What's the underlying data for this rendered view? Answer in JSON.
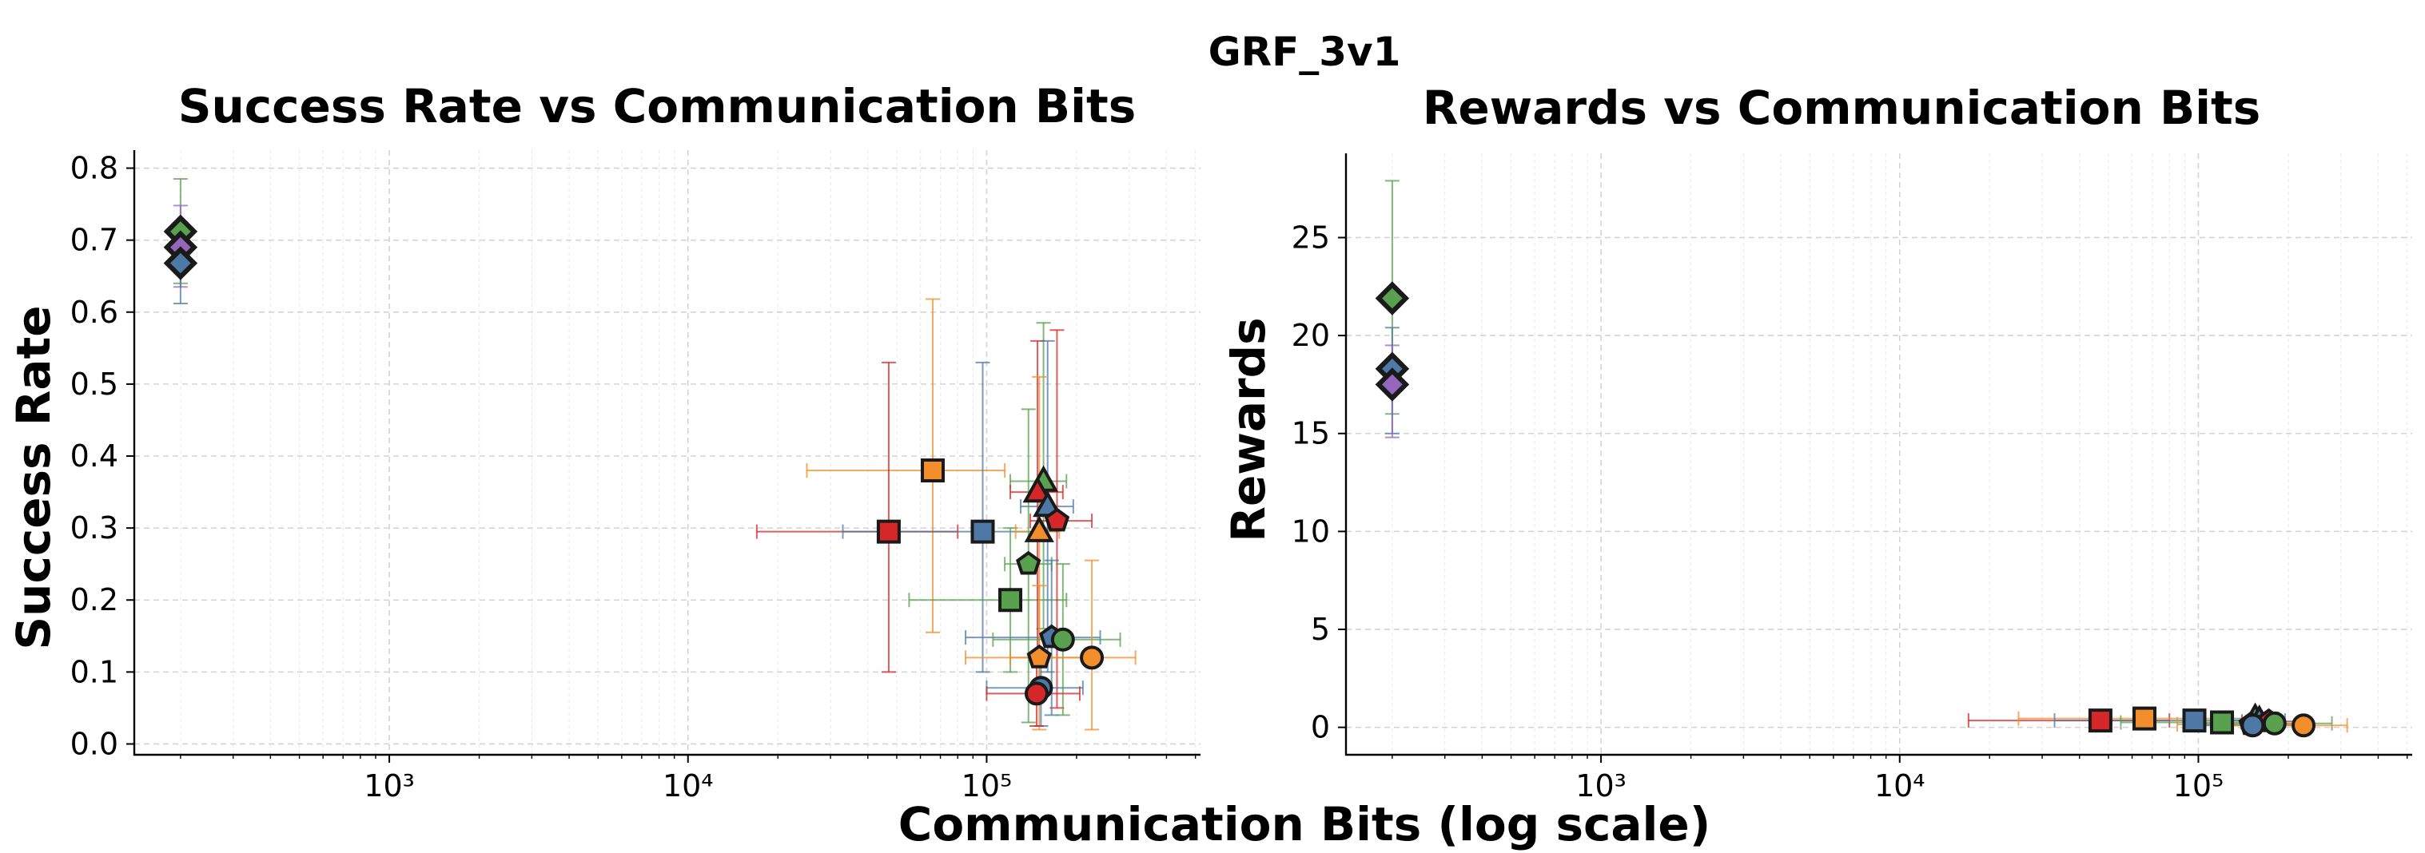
{
  "figure": {
    "suptitle": "GRF_3v1",
    "shared_xlabel": "Communication Bits (log scale)"
  },
  "chart_data": [
    {
      "type": "scatter",
      "title": "Success Rate vs Communication Bits",
      "xlabel": "Communication Bits (log scale)",
      "ylabel": "Success Rate",
      "xscale": "log",
      "xlim": [
        140,
        520000
      ],
      "ylim": [
        -0.015,
        0.825
      ],
      "xticks": [
        1000,
        10000,
        100000
      ],
      "xtick_labels": [
        "10³",
        "10⁴",
        "10⁵"
      ],
      "yticks": [
        0.0,
        0.1,
        0.2,
        0.3,
        0.4,
        0.5,
        0.6,
        0.7,
        0.8
      ],
      "ytick_labels": [
        "0.0",
        "0.1",
        "0.2",
        "0.3",
        "0.4",
        "0.5",
        "0.6",
        "0.7",
        "0.8"
      ],
      "grid": true,
      "points": [
        {
          "marker": "diamond",
          "color": "#59a14f",
          "x": 200,
          "y": 0.712,
          "yerr": [
            0.64,
            0.785
          ]
        },
        {
          "marker": "diamond",
          "color": "#9467bd",
          "x": 200,
          "y": 0.69,
          "yerr": [
            0.635,
            0.748
          ]
        },
        {
          "marker": "diamond",
          "color": "#4e79a7",
          "x": 200,
          "y": 0.668,
          "yerr": [
            0.612,
            0.725
          ]
        },
        {
          "marker": "square",
          "color": "#f28e2b",
          "x": 66000,
          "y": 0.38,
          "xerr": [
            25000,
            115000
          ],
          "yerr": [
            0.155,
            0.618
          ]
        },
        {
          "marker": "square",
          "color": "#d62728",
          "x": 47000,
          "y": 0.295,
          "xerr": [
            17000,
            80000
          ],
          "yerr": [
            0.1,
            0.53
          ]
        },
        {
          "marker": "square",
          "color": "#4e79a7",
          "x": 97000,
          "y": 0.295,
          "xerr": [
            33000,
            160000
          ],
          "yerr": [
            0.1,
            0.53
          ]
        },
        {
          "marker": "square",
          "color": "#59a14f",
          "x": 120000,
          "y": 0.2,
          "xerr": [
            55000,
            185000
          ],
          "yerr": [
            0.1,
            0.3
          ]
        },
        {
          "marker": "triangle",
          "color": "#59a14f",
          "x": 155000,
          "y": 0.365,
          "xerr": [
            120000,
            185000
          ],
          "yerr": [
            0.16,
            0.585
          ]
        },
        {
          "marker": "triangle",
          "color": "#d62728",
          "x": 148000,
          "y": 0.35,
          "xerr": [
            120000,
            180000
          ],
          "yerr": [
            0.12,
            0.56
          ]
        },
        {
          "marker": "triangle",
          "color": "#4e79a7",
          "x": 160000,
          "y": 0.33,
          "xerr": [
            130000,
            195000
          ],
          "yerr": [
            0.1,
            0.56
          ]
        },
        {
          "marker": "triangle",
          "color": "#f28e2b",
          "x": 150000,
          "y": 0.295,
          "xerr": [
            125000,
            175000
          ],
          "yerr": [
            0.08,
            0.51
          ]
        },
        {
          "marker": "pentagon",
          "color": "#d62728",
          "x": 172000,
          "y": 0.31,
          "xerr": [
            140000,
            225000
          ],
          "yerr": [
            0.05,
            0.575
          ]
        },
        {
          "marker": "pentagon",
          "color": "#59a14f",
          "x": 138000,
          "y": 0.25,
          "xerr": [
            115000,
            165000
          ],
          "yerr": [
            0.03,
            0.465
          ]
        },
        {
          "marker": "pentagon",
          "color": "#4e79a7",
          "x": 165000,
          "y": 0.148,
          "xerr": [
            85000,
            240000
          ],
          "yerr": [
            0.04,
            0.255
          ]
        },
        {
          "marker": "pentagon",
          "color": "#f28e2b",
          "x": 150000,
          "y": 0.12,
          "xerr": [
            85000,
            215000
          ],
          "yerr": [
            0.02,
            0.22
          ]
        },
        {
          "marker": "circle",
          "color": "#59a14f",
          "x": 180000,
          "y": 0.145,
          "xerr": [
            105000,
            280000
          ],
          "yerr": [
            0.04,
            0.25
          ]
        },
        {
          "marker": "circle",
          "color": "#f28e2b",
          "x": 225000,
          "y": 0.12,
          "xerr": [
            120000,
            315000
          ],
          "yerr": [
            0.02,
            0.255
          ]
        },
        {
          "marker": "circle",
          "color": "#4e79a7",
          "x": 152000,
          "y": 0.078,
          "xerr": [
            100000,
            210000
          ],
          "yerr": [
            0.025,
            0.13
          ]
        },
        {
          "marker": "circle",
          "color": "#d62728",
          "x": 147000,
          "y": 0.07,
          "xerr": [
            100000,
            205000
          ],
          "yerr": [
            0.025,
            0.115
          ]
        }
      ]
    },
    {
      "type": "scatter",
      "title": "Rewards vs Communication Bits",
      "xlabel": "Communication Bits (log scale)",
      "ylabel": "Rewards",
      "xscale": "log",
      "xlim": [
        140,
        520000
      ],
      "ylim": [
        -1.4,
        29.3
      ],
      "xticks": [
        1000,
        10000,
        100000
      ],
      "xtick_labels": [
        "10³",
        "10⁴",
        "10⁵"
      ],
      "yticks": [
        0,
        5,
        10,
        15,
        20,
        25
      ],
      "ytick_labels": [
        "0",
        "5",
        "10",
        "15",
        "20",
        "25"
      ],
      "grid": true,
      "points": [
        {
          "marker": "diamond",
          "color": "#59a14f",
          "x": 200,
          "y": 21.9,
          "yerr": [
            16.0,
            27.9
          ]
        },
        {
          "marker": "diamond",
          "color": "#4e79a7",
          "x": 200,
          "y": 18.3,
          "yerr": [
            15.0,
            20.4
          ]
        },
        {
          "marker": "diamond",
          "color": "#9467bd",
          "x": 200,
          "y": 17.5,
          "yerr": [
            14.8,
            19.5
          ]
        },
        {
          "marker": "square",
          "color": "#d62728",
          "x": 47000,
          "y": 0.35,
          "xerr": [
            17000,
            80000
          ]
        },
        {
          "marker": "square",
          "color": "#f28e2b",
          "x": 66000,
          "y": 0.45,
          "xerr": [
            25000,
            115000
          ]
        },
        {
          "marker": "square",
          "color": "#4e79a7",
          "x": 97000,
          "y": 0.35,
          "xerr": [
            33000,
            160000
          ]
        },
        {
          "marker": "square",
          "color": "#59a14f",
          "x": 120000,
          "y": 0.25,
          "xerr": [
            55000,
            185000
          ]
        },
        {
          "marker": "triangle",
          "color": "#59a14f",
          "x": 155000,
          "y": 0.45,
          "xerr": [
            120000,
            185000
          ]
        },
        {
          "marker": "triangle",
          "color": "#4e79a7",
          "x": 160000,
          "y": 0.35,
          "xerr": [
            130000,
            195000
          ]
        },
        {
          "marker": "pentagon",
          "color": "#d62728",
          "x": 172000,
          "y": 0.3,
          "xerr": [
            140000,
            225000
          ]
        },
        {
          "marker": "pentagon",
          "color": "#f28e2b",
          "x": 150000,
          "y": 0.15,
          "xerr": [
            85000,
            215000
          ]
        },
        {
          "marker": "circle",
          "color": "#59a14f",
          "x": 180000,
          "y": 0.2,
          "xerr": [
            105000,
            280000
          ]
        },
        {
          "marker": "circle",
          "color": "#4e79a7",
          "x": 152000,
          "y": 0.1,
          "xerr": [
            100000,
            210000
          ]
        },
        {
          "marker": "circle",
          "color": "#f28e2b",
          "x": 225000,
          "y": 0.1,
          "xerr": [
            120000,
            315000
          ]
        }
      ]
    }
  ]
}
